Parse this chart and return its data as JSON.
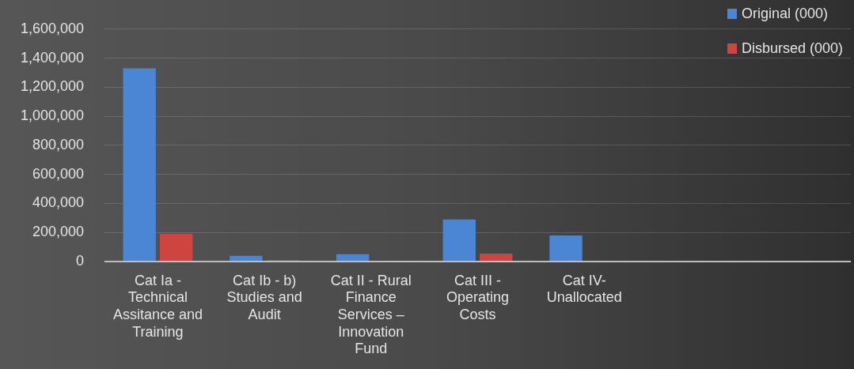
{
  "chart_data": {
    "type": "bar",
    "categories": [
      "Cat Ia - Technical Assitance and Training",
      "Cat Ib - b) Studies and Audit",
      "Cat II - Rural Finance Services – Innovation Fund",
      "Cat III - Operating Costs",
      "Cat IV- Unallocated",
      null,
      null
    ],
    "series": [
      {
        "name": "Original (000)",
        "color": "#4a86d4",
        "values": [
          1330000,
          40000,
          50000,
          290000,
          180000,
          null,
          null
        ]
      },
      {
        "name": "Disbursed (000)",
        "color": "#d04440",
        "values": [
          190000,
          10000,
          0,
          55000,
          0,
          null,
          null
        ]
      }
    ],
    "ylim": [
      0,
      1600000
    ],
    "yticks": [
      {
        "value": 0,
        "label": "0"
      },
      {
        "value": 200000,
        "label": "200,000"
      },
      {
        "value": 400000,
        "label": "400,000"
      },
      {
        "value": 600000,
        "label": "600,000"
      },
      {
        "value": 800000,
        "label": "800,000"
      },
      {
        "value": 1000000,
        "label": "1,000,000"
      },
      {
        "value": 1200000,
        "label": "1,200,000"
      },
      {
        "value": 1400000,
        "label": "1,400,000"
      },
      {
        "value": 1600000,
        "label": "1,600,000"
      }
    ],
    "grid": "y",
    "legend": "top right"
  }
}
